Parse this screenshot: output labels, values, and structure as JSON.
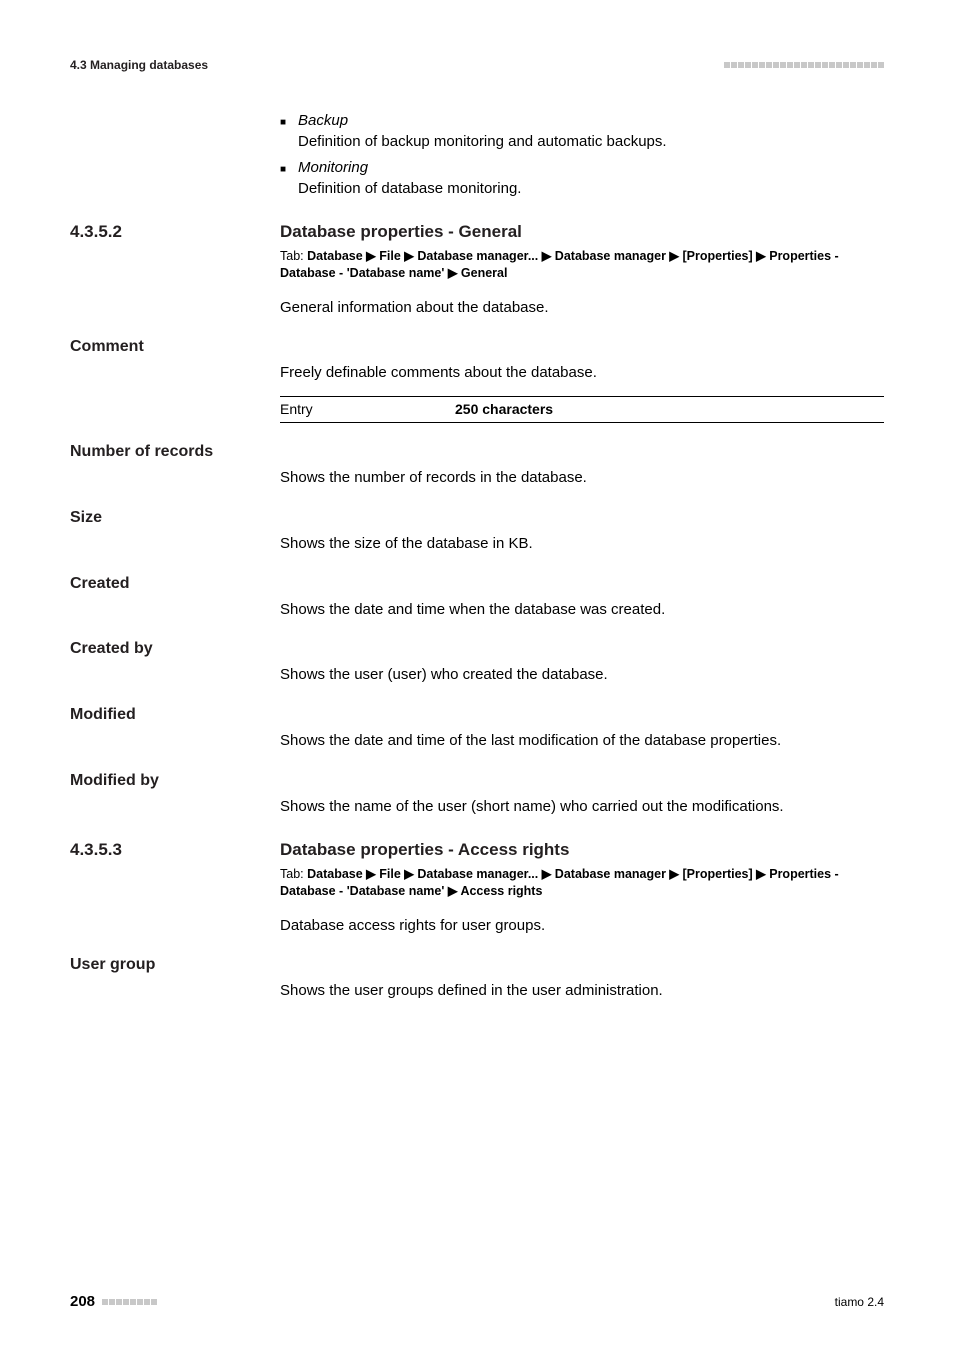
{
  "running_header": {
    "left": "4.3 Managing databases"
  },
  "bullets": [
    {
      "title": "Backup",
      "body": "Definition of backup monitoring and automatic backups."
    },
    {
      "title": "Monitoring",
      "body": "Definition of database monitoring."
    }
  ],
  "sections": [
    {
      "number": "4.3.5.2",
      "title": "Database properties - General",
      "tab_prefix": "Tab: ",
      "tab_path": "Database ▶ File ▶ Database manager... ▶ Database manager ▶ [Properties] ▶ Properties - Database - 'Database name' ▶ General",
      "intro": "General information about the database.",
      "fields": [
        {
          "label": "Comment",
          "text": "Freely definable comments about the database.",
          "entry": {
            "label": "Entry",
            "value": "250 characters"
          }
        },
        {
          "label": "Number of records",
          "text": "Shows the number of records in the database."
        },
        {
          "label": "Size",
          "text": "Shows the size of the database in KB."
        },
        {
          "label": "Created",
          "text": "Shows the date and time when the database was created."
        },
        {
          "label": "Created by",
          "text": "Shows the user (user) who created the database."
        },
        {
          "label": "Modified",
          "text": "Shows the date and time of the last modification of the database properties."
        },
        {
          "label": "Modified by",
          "text": "Shows the name of the user (short name) who carried out the modifications."
        }
      ]
    },
    {
      "number": "4.3.5.3",
      "title": "Database properties - Access rights",
      "tab_prefix": "Tab: ",
      "tab_path": "Database ▶ File ▶ Database manager... ▶ Database manager ▶ [Properties] ▶ Properties - Database - 'Database name' ▶ Access rights",
      "intro": "Database access rights for user groups.",
      "fields": [
        {
          "label": "User group",
          "text": "Shows the user groups defined in the user administration."
        }
      ]
    }
  ],
  "footer": {
    "page": "208",
    "doc": "tiamo 2.4"
  },
  "decor": {
    "squares_header": 23,
    "squares_footer": 8
  }
}
